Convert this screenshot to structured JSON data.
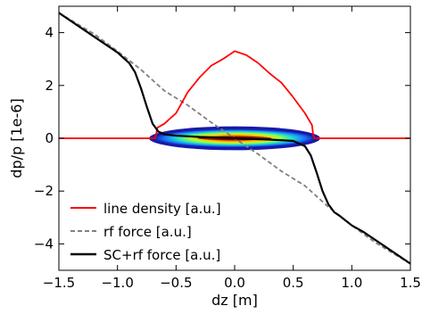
{
  "chart_data": {
    "type": "line",
    "xlabel": "dz [m]",
    "ylabel": "dp/p [1e-6]",
    "xlim": [
      -1.5,
      1.5
    ],
    "ylim": [
      -5,
      5
    ],
    "x_ticks": [
      -1.5,
      -1.0,
      -0.5,
      0.0,
      0.5,
      1.0,
      1.5
    ],
    "x_tick_labels": [
      "−1.5",
      "−1.0",
      "−0.5",
      "0.0",
      "0.5",
      "1.0",
      "1.5"
    ],
    "y_ticks": [
      -4,
      -2,
      0,
      2,
      4
    ],
    "y_tick_labels": [
      "−4",
      "−2",
      "0",
      "2",
      "4"
    ],
    "legend_position": "lower-left",
    "series": [
      {
        "name": "line density [a.u.]",
        "color": "#ff0000",
        "style": "solid",
        "x": [
          -1.5,
          -0.68,
          -0.67,
          -0.66,
          -0.6,
          -0.5,
          -0.4,
          -0.3,
          -0.2,
          -0.1,
          0.0,
          0.1,
          0.2,
          0.3,
          0.4,
          0.5,
          0.6,
          0.66,
          0.67,
          0.68,
          1.5
        ],
        "y": [
          0,
          0,
          0.15,
          0.4,
          0.55,
          0.95,
          1.75,
          2.3,
          2.75,
          3.0,
          3.3,
          3.15,
          2.85,
          2.45,
          2.1,
          1.55,
          0.95,
          0.5,
          0.15,
          0,
          0
        ]
      },
      {
        "name": "rf force [a.u.]",
        "color": "#808080",
        "style": "dashed",
        "x": [
          -1.5,
          -1.2,
          -1.0,
          -0.8,
          -0.6,
          -0.4,
          -0.2,
          0.0,
          0.2,
          0.4,
          0.6,
          0.8,
          1.0,
          1.2,
          1.5
        ],
        "y": [
          4.75,
          3.95,
          3.3,
          2.6,
          1.8,
          1.25,
          0.6,
          0.0,
          -0.6,
          -1.25,
          -1.8,
          -2.6,
          -3.3,
          -3.95,
          -4.75
        ]
      },
      {
        "name": "SC+rf force [a.u.]",
        "color": "#000000",
        "style": "solid",
        "x": [
          -1.5,
          -1.3,
          -1.1,
          -1.0,
          -0.9,
          -0.85,
          -0.8,
          -0.75,
          -0.7,
          -0.65,
          -0.6,
          -0.5,
          -0.3,
          -0.1,
          0.0,
          0.1,
          0.3,
          0.5,
          0.6,
          0.65,
          0.7,
          0.75,
          0.8,
          0.85,
          0.9,
          1.0,
          1.1,
          1.3,
          1.5
        ],
        "y": [
          4.75,
          4.15,
          3.55,
          3.25,
          2.85,
          2.5,
          1.9,
          1.2,
          0.55,
          0.25,
          0.15,
          0.1,
          0.05,
          0.02,
          0.0,
          -0.02,
          -0.05,
          -0.1,
          -0.3,
          -0.65,
          -1.3,
          -2.0,
          -2.5,
          -2.8,
          -2.95,
          -3.3,
          -3.55,
          -4.15,
          -4.75
        ]
      }
    ],
    "scatter_cloud": {
      "name": "particle distribution",
      "colormap": "jet",
      "x_range": [
        -0.7,
        0.7
      ],
      "dp_range": [
        -0.35,
        0.35
      ],
      "center": [
        0.0,
        0.0
      ]
    },
    "grid": false
  }
}
